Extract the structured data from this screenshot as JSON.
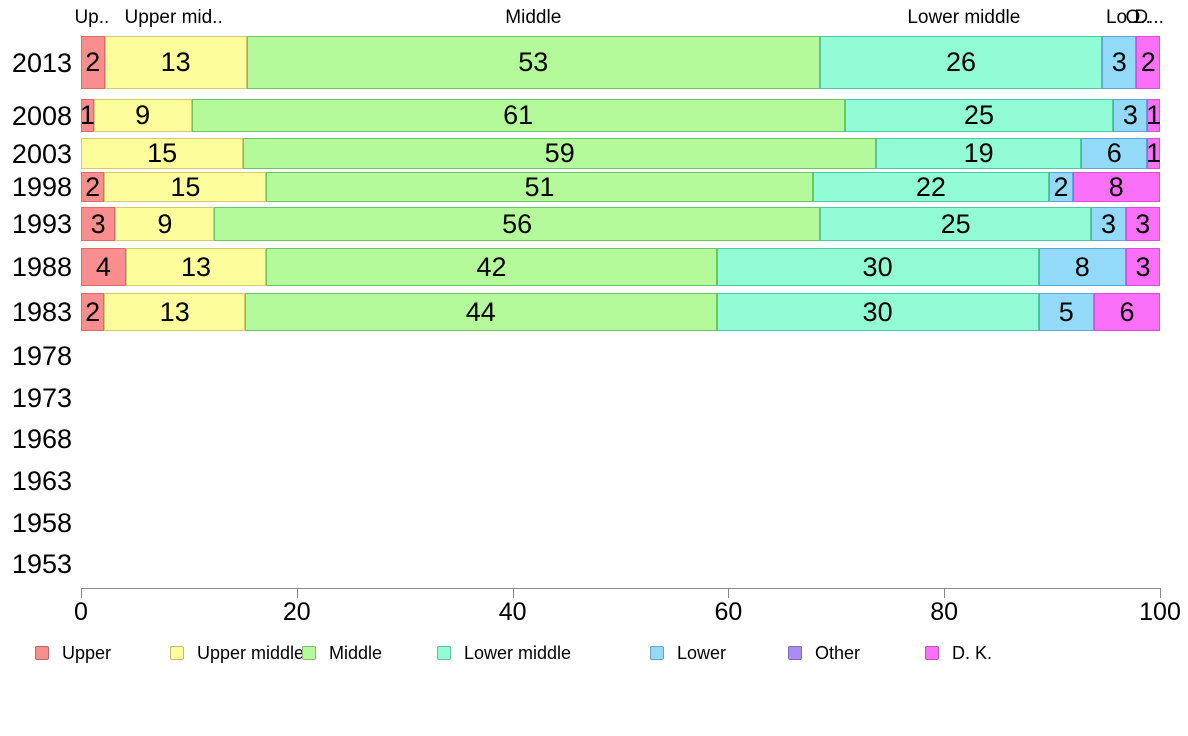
{
  "chart_data": {
    "type": "bar",
    "variant": "stacked-horizontal",
    "orientation": "horizontal",
    "grid": false,
    "legend_position": "bottom",
    "x_axis": {
      "min": 0,
      "max": 100,
      "ticks": [
        0,
        20,
        40,
        60,
        80,
        100
      ]
    },
    "categories": [
      "2013",
      "2008",
      "2003",
      "1998",
      "1993",
      "1988",
      "1983",
      "1978",
      "1973",
      "1968",
      "1963",
      "1958",
      "1953"
    ],
    "series": [
      {
        "name": "Upper",
        "color": "#FA8E8E",
        "border": "#E06A6A",
        "values": [
          2,
          1,
          0,
          2,
          3,
          4,
          2,
          null,
          null,
          null,
          null,
          null,
          null
        ]
      },
      {
        "name": "Upper middle",
        "color": "#FEFD9C",
        "border": "#D9C96E",
        "values": [
          13,
          9,
          15,
          15,
          9,
          13,
          13,
          null,
          null,
          null,
          null,
          null,
          null
        ]
      },
      {
        "name": "Middle",
        "color": "#B5FA9A",
        "border": "#6CC36C",
        "values": [
          53,
          61,
          59,
          51,
          56,
          42,
          44,
          null,
          null,
          null,
          null,
          null,
          null
        ]
      },
      {
        "name": "Lower middle",
        "color": "#90FBD5",
        "border": "#4FC7A0",
        "values": [
          26,
          25,
          19,
          22,
          25,
          30,
          30,
          null,
          null,
          null,
          null,
          null,
          null
        ]
      },
      {
        "name": "Lower",
        "color": "#92DAF8",
        "border": "#5EA4D9",
        "values": [
          3,
          3,
          6,
          2,
          3,
          8,
          5,
          null,
          null,
          null,
          null,
          null,
          null
        ]
      },
      {
        "name": "Other",
        "color": "#AB8CF2",
        "border": "#8E68DE",
        "values": [
          0,
          0,
          0,
          0,
          0,
          0,
          0,
          null,
          null,
          null,
          null,
          null,
          null
        ]
      },
      {
        "name": "D. K.",
        "color": "#FB70F8",
        "border": "#D94FD4",
        "values": [
          2,
          1,
          1,
          8,
          3,
          3,
          6,
          null,
          null,
          null,
          null,
          null,
          null
        ]
      }
    ],
    "column_headers": [
      {
        "label": "Up..",
        "series": "Upper"
      },
      {
        "label": "Upper mid..",
        "series": "Upper middle"
      },
      {
        "label": "Middle",
        "series": "Middle"
      },
      {
        "label": "Lower middle",
        "series": "Lower middle"
      },
      {
        "label": "Lo..",
        "series": "Lower"
      },
      {
        "label": "O..",
        "series": "Other"
      },
      {
        "label": "D...",
        "series": "D. K."
      }
    ],
    "legend": [
      {
        "label": "Upper",
        "color": "#FA8E8E"
      },
      {
        "label": "Upper middle",
        "color": "#FEFD9C"
      },
      {
        "label": "Middle",
        "color": "#B5FA9A"
      },
      {
        "label": "Lower middle",
        "color": "#90FBD5"
      },
      {
        "label": "Lower",
        "color": "#92DAF8"
      },
      {
        "label": "Other",
        "color": "#AB8CF2"
      },
      {
        "label": "D. K.",
        "color": "#FB70F8"
      }
    ]
  }
}
